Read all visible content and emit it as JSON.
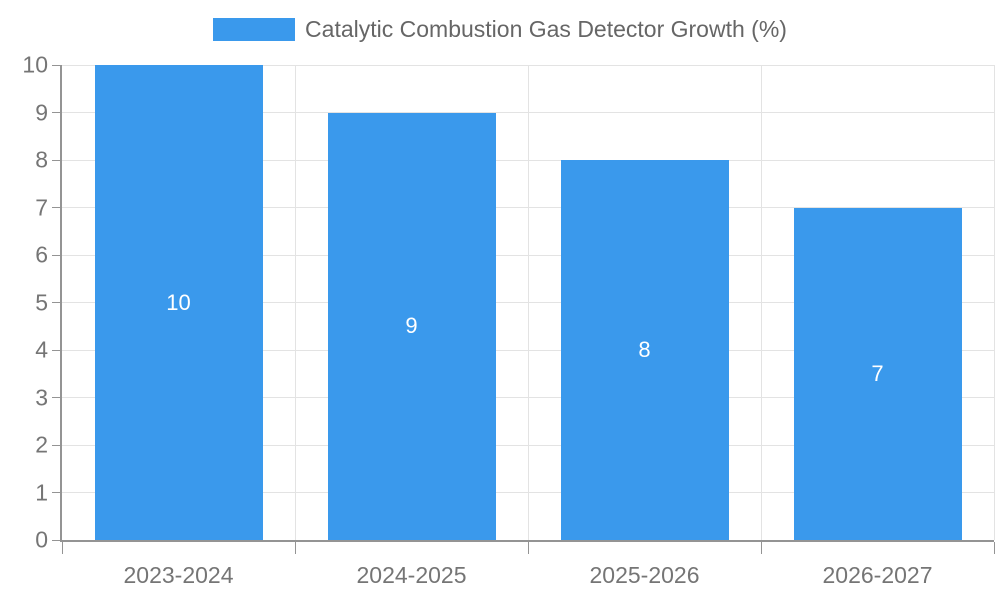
{
  "chart_data": {
    "type": "bar",
    "title": "Catalytic Combustion Gas Detector Growth (%)",
    "categories": [
      "2023-2024",
      "2024-2025",
      "2025-2026",
      "2026-2027"
    ],
    "values": [
      10,
      9,
      8,
      7
    ],
    "bar_labels": [
      "10",
      "9",
      "8",
      "7"
    ],
    "ylabel": "",
    "xlabel": "",
    "ylim": [
      0,
      10
    ],
    "ytick_step": 1,
    "ytick_labels": [
      "0",
      "1",
      "2",
      "3",
      "4",
      "5",
      "6",
      "7",
      "8",
      "9",
      "10"
    ],
    "grid": true,
    "legend_position": "top-center",
    "colors": {
      "bar": "#3A99EC",
      "grid": "#E3E3E3",
      "axis": "#949494",
      "tick_label": "#757575",
      "legend_text": "#666666",
      "bar_label": "#FFFFFF",
      "background": "#FFFFFF"
    }
  }
}
